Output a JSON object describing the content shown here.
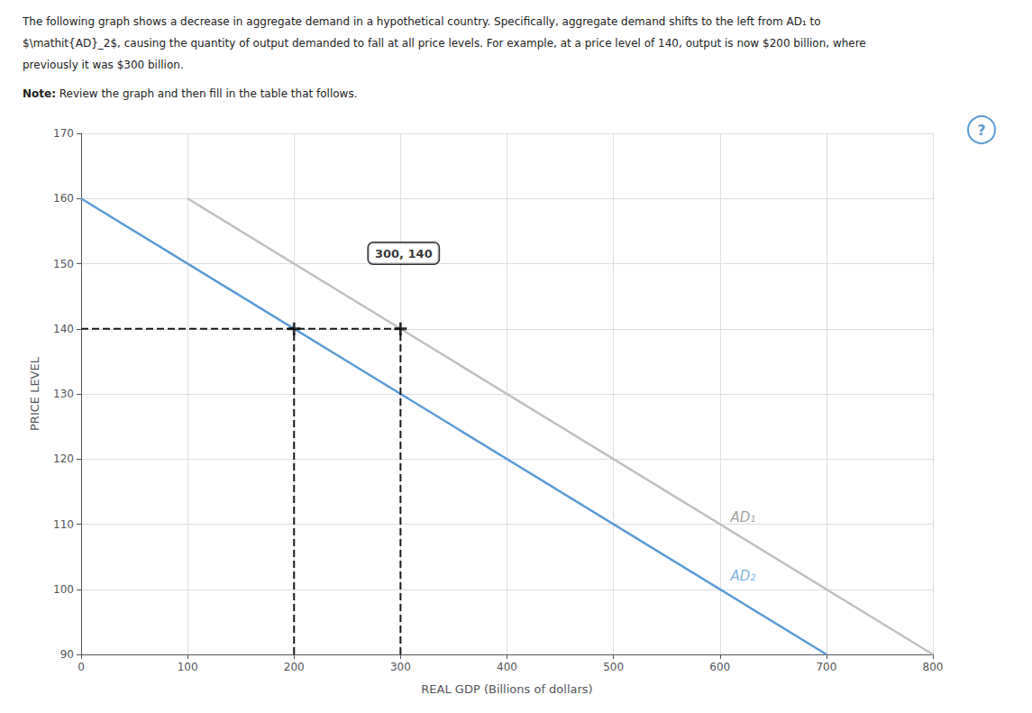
{
  "chart_data": {
    "type": "line",
    "title": [
      "The following graph shows a decrease in aggregate demand in a hypothetical country. Specifically, aggregate demand shifts to the left from AD₁ to",
      "$\\mathit{AD}_2$, causing the quantity of output demanded to fall at all price levels. For example, at a price level of 140, output is now $200 billion, where",
      "previously it was $300 billion."
    ],
    "subtitle": [
      "Note:",
      " Review the graph and then fill in the table that follows."
    ],
    "x_label": "REAL GDP (Billions of dollars)",
    "y_label": "PRICE LEVEL",
    "xlim": [
      0,
      800
    ],
    "ylim": [
      90,
      170
    ],
    "xticks": [
      0,
      100,
      200,
      300,
      400,
      500,
      600,
      700,
      800
    ],
    "yticks": [
      90,
      100,
      110,
      120,
      130,
      140,
      150,
      160,
      170
    ],
    "grid": true,
    "series": [
      {
        "type": "line",
        "color": "#c0c0c0",
        "x": [
          100,
          800
        ],
        "values": [
          160,
          90
        ]
      },
      {
        "type": "line",
        "color": "#5b9bd5",
        "x": [
          0,
          700
        ],
        "values": [
          160,
          90
        ]
      },
      {
        "type": "line",
        "color": "#1a1a1a",
        "line_style": "dashed",
        "x": [
          0,
          300
        ],
        "values": [
          140,
          140
        ]
      },
      {
        "type": "line",
        "color": "#1a1a1a",
        "line_style": "dashed",
        "x": [
          200,
          200
        ],
        "values": [
          90,
          140
        ]
      },
      {
        "type": "line",
        "color": "#1a1a1a",
        "line_style": "dashed",
        "x": [
          300,
          300
        ],
        "values": [
          90,
          140
        ]
      },
      {
        "type": "scatter",
        "color": "#000000",
        "marker": "plus",
        "x": [
          200,
          300
        ],
        "values": [
          140,
          140
        ]
      }
    ],
    "annotations": [
      {
        "text": "300, 140",
        "x": 270,
        "y": 150
      },
      {
        "text": "AD₁",
        "x": 610,
        "y": 110,
        "color": "#888888"
      },
      {
        "text": "AD₂",
        "x": 610,
        "y": 101,
        "color": "#5b9bd5"
      },
      {
        "text": "?",
        "color": "#5b9bd5"
      }
    ]
  }
}
